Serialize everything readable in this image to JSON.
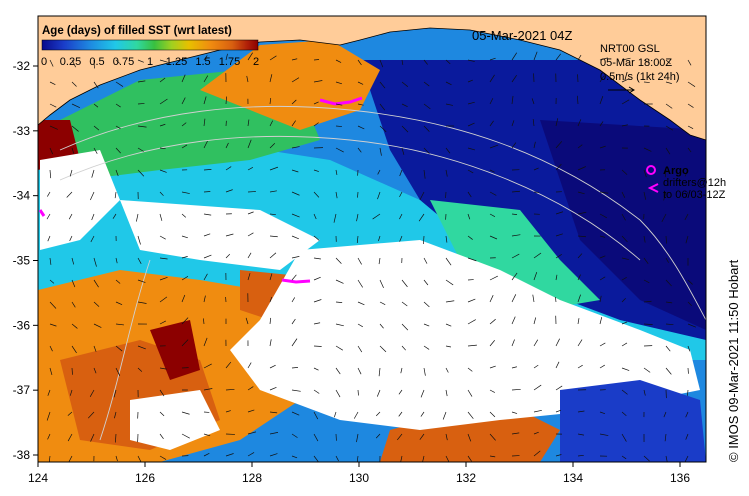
{
  "title": "Age (days) of filled SST (wrt latest)",
  "date_label": "05-Mar-2021 04Z",
  "colorbar": {
    "ticks": [
      "0",
      "0.25",
      "0.5",
      "0.75",
      "1",
      "1.25",
      "1.5",
      "1.75",
      "2"
    ],
    "colors": [
      "#0a0a8c",
      "#1a3cc8",
      "#1e88e0",
      "#20c8e8",
      "#30d8a0",
      "#38c040",
      "#a0d020",
      "#e8c000",
      "#f08c10",
      "#d86010",
      "#b02008",
      "#8c0000"
    ]
  },
  "current_info": {
    "line1": "NRT00 GSL",
    "line2": "05-Mar 18:00Z",
    "line3": "0.5m/s (1kt 24h)"
  },
  "legend": {
    "argo_label": "Argo",
    "drifters_line1": "drifters@12h",
    "drifters_line2": "to 06/03-12Z"
  },
  "credit": "© IMOS 09-Mar-2021 11:50 Hobart",
  "axes": {
    "lon_ticks": [
      "124",
      "126",
      "128",
      "130",
      "132",
      "134",
      "136"
    ],
    "lat_ticks": [
      "-32",
      "-33",
      "-34",
      "-35",
      "-36",
      "-37",
      "-38"
    ]
  },
  "palette": {
    "land": "#ffcc99",
    "no_data": "#ffffff"
  }
}
